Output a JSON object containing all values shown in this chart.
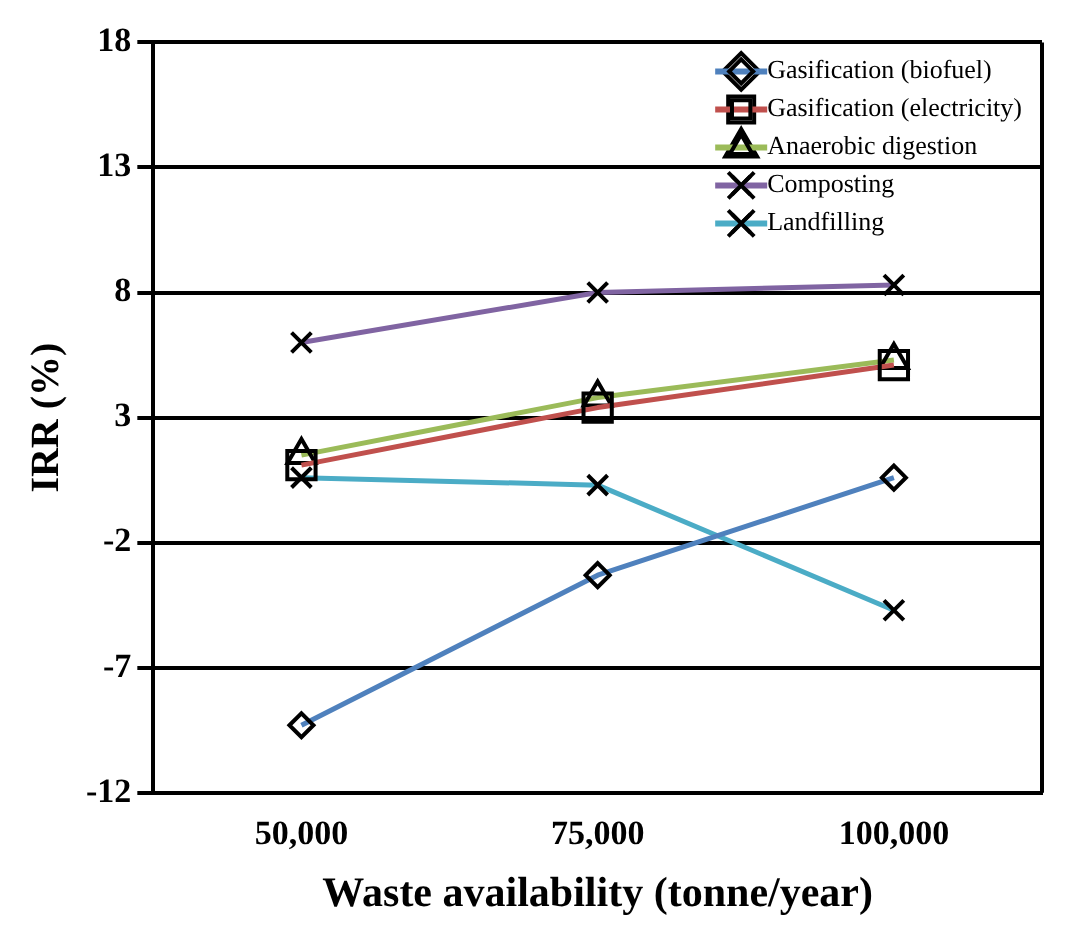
{
  "chart_data": {
    "type": "line",
    "xlabel": "Waste availability (tonne/year)",
    "ylabel": "IRR (%)",
    "categories": [
      "50,000",
      "75,000",
      "100,000"
    ],
    "series": [
      {
        "name": "Gasification (biofuel)",
        "color": "#4f81bd",
        "marker": "diamond",
        "values": [
          -9.3,
          -3.3,
          0.6
        ]
      },
      {
        "name": "Gasification (electricity)",
        "color": "#c0504d",
        "marker": "square",
        "values": [
          1.1,
          3.4,
          5.1
        ]
      },
      {
        "name": "Anaerobic digestion",
        "color": "#9bbb59",
        "marker": "triangle",
        "values": [
          1.5,
          3.8,
          5.3
        ]
      },
      {
        "name": "Composting",
        "color": "#8064a2",
        "marker": "cross",
        "values": [
          6.0,
          8.0,
          8.3
        ]
      },
      {
        "name": "Landfilling",
        "color": "#4bacc6",
        "marker": "cross",
        "values": [
          0.6,
          0.3,
          -4.7
        ]
      }
    ],
    "ylim": [
      -12,
      18
    ],
    "yticks": [
      -12,
      -7,
      -2,
      3,
      8,
      13,
      18
    ],
    "grid": "y",
    "legend": "top right"
  }
}
